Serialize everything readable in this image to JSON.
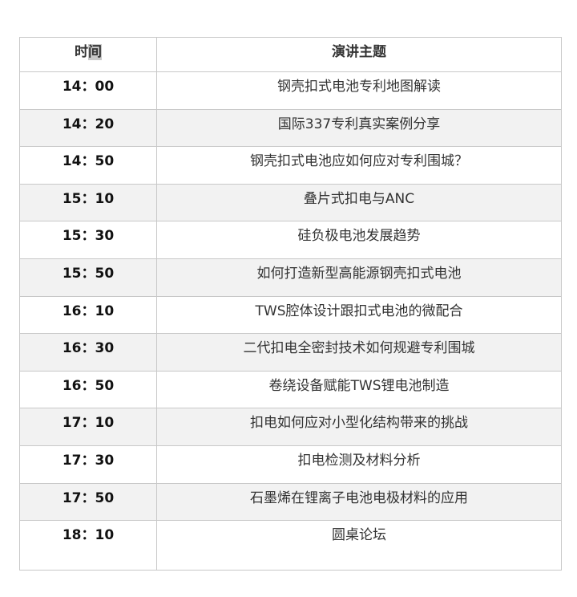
{
  "header": {
    "time_part1": "时",
    "time_part2": "间",
    "topic": "演讲主题"
  },
  "rows": [
    {
      "time": "14：00",
      "topic": "钢壳扣式电池专利地图解读"
    },
    {
      "time": "14：20",
      "topic": "国际337专利真实案例分享"
    },
    {
      "time": "14：50",
      "topic": "钢壳扣式电池应如何应对专利围城？"
    },
    {
      "time": "15：10",
      "topic": "叠片式扣电与ANC"
    },
    {
      "time": "15：30",
      "topic": "硅负极电池发展趋势"
    },
    {
      "time": "15：50",
      "topic": "如何打造新型高能源钢壳扣式电池"
    },
    {
      "time": "16：10",
      "topic": "TWS腔体设计跟扣式电池的微配合"
    },
    {
      "time": "16：30",
      "topic": "二代扣电全密封技术如何规避专利围城"
    },
    {
      "time": "16：50",
      "topic": "卷绕设备赋能TWS锂电池制造"
    },
    {
      "time": "17：10",
      "topic": "扣电如何应对小型化结构带来的挑战"
    },
    {
      "time": "17：30",
      "topic": "扣电检测及材料分析"
    },
    {
      "time": "17：50",
      "topic": "石墨烯在锂离子电池电极材料的应用"
    },
    {
      "time": "18：10",
      "topic": "圆桌论坛"
    }
  ]
}
